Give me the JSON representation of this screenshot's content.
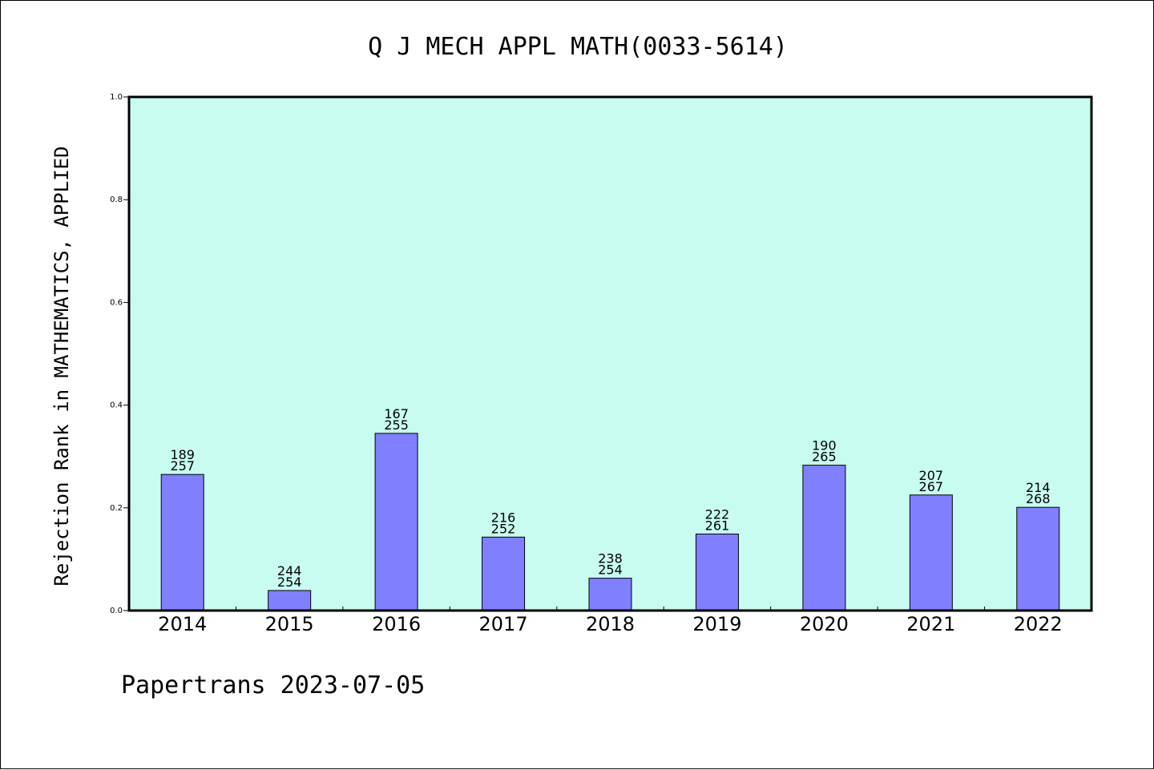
{
  "chart_data": {
    "type": "bar",
    "title": "Q J MECH APPL MATH(0033-5614)",
    "xlabel": "",
    "ylabel": "Rejection Rank in MATHEMATICS, APPLIED",
    "ylim": [
      0,
      1.0
    ],
    "yticks": [
      "0.0",
      "0.2",
      "0.4",
      "0.6",
      "0.8",
      "1.0"
    ],
    "categories": [
      "2014",
      "2015",
      "2016",
      "2017",
      "2018",
      "2019",
      "2020",
      "2021",
      "2022"
    ],
    "values": [
      0.265,
      0.039,
      0.345,
      0.143,
      0.063,
      0.149,
      0.283,
      0.225,
      0.201
    ],
    "rank": [
      "189",
      "244",
      "167",
      "216",
      "238",
      "222",
      "190",
      "207",
      "214"
    ],
    "total": [
      "257",
      "254",
      "255",
      "252",
      "254",
      "261",
      "265",
      "267",
      "268"
    ],
    "bar_color": "#8080ff",
    "plot_background": "#c8fcf0",
    "grid": false,
    "legend": "none"
  },
  "footer": "Papertrans 2023-07-05"
}
